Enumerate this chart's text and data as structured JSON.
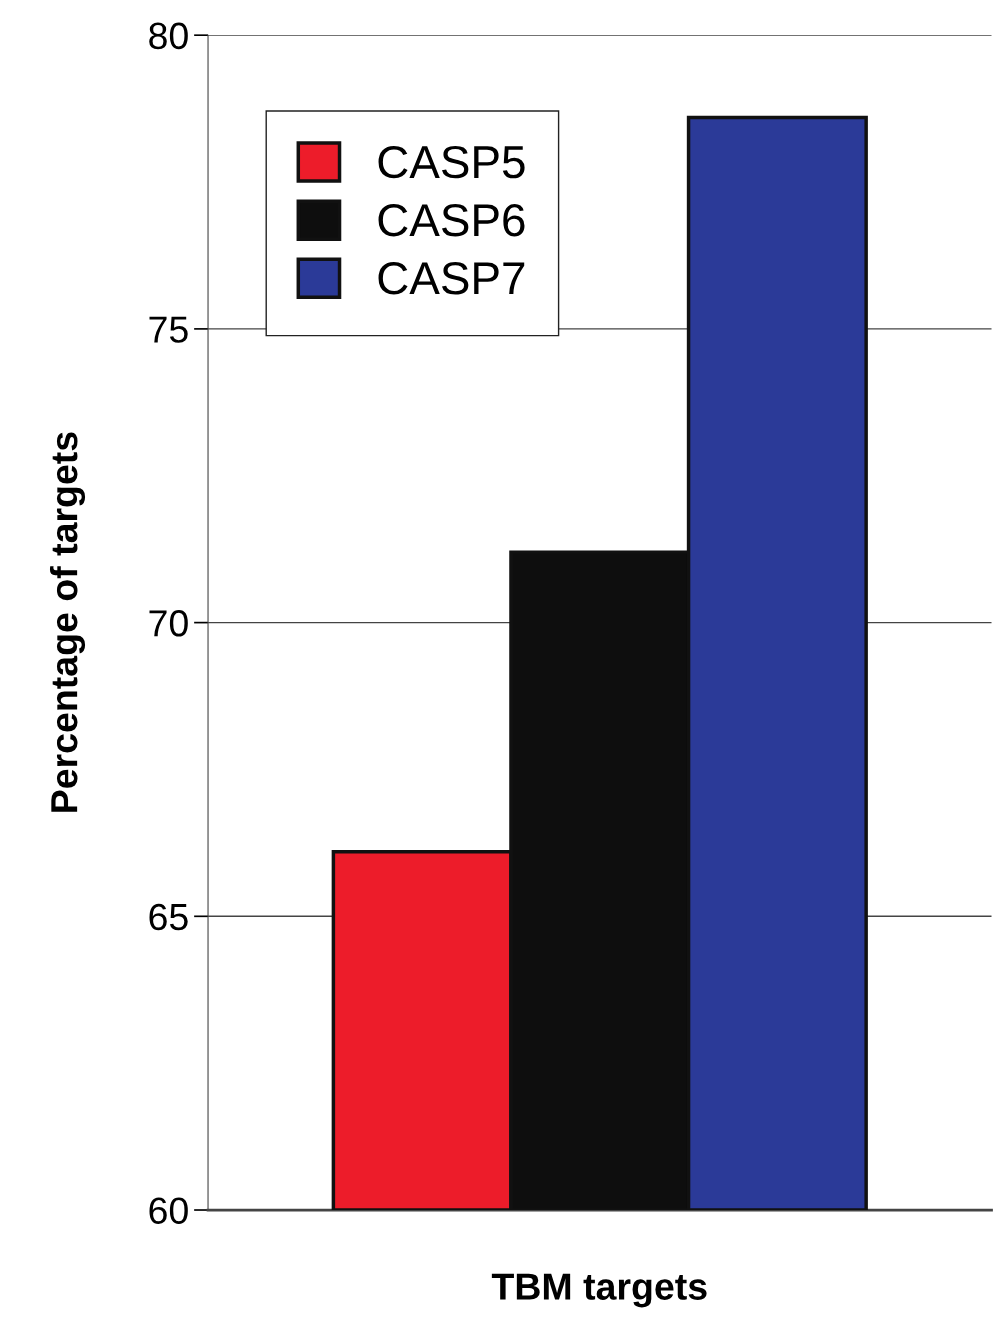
{
  "chart_data": {
    "type": "bar",
    "xlabel": "TBM targets",
    "ylabel": "Percentage of targets",
    "categories": [
      null
    ],
    "series": [
      {
        "name": "CASP5",
        "color": "#ed1c2a",
        "values": [
          66.1
        ]
      },
      {
        "name": "CASP6",
        "color": "#0e0e0e",
        "values": [
          71.2
        ]
      },
      {
        "name": "CASP7",
        "color": "#2b3a98",
        "values": [
          78.6
        ]
      }
    ],
    "ylim": [
      60,
      80
    ],
    "yticks": [
      60,
      65,
      70,
      75,
      80
    ],
    "grid": "y",
    "legend": "top left",
    "tick_labels": "y"
  }
}
